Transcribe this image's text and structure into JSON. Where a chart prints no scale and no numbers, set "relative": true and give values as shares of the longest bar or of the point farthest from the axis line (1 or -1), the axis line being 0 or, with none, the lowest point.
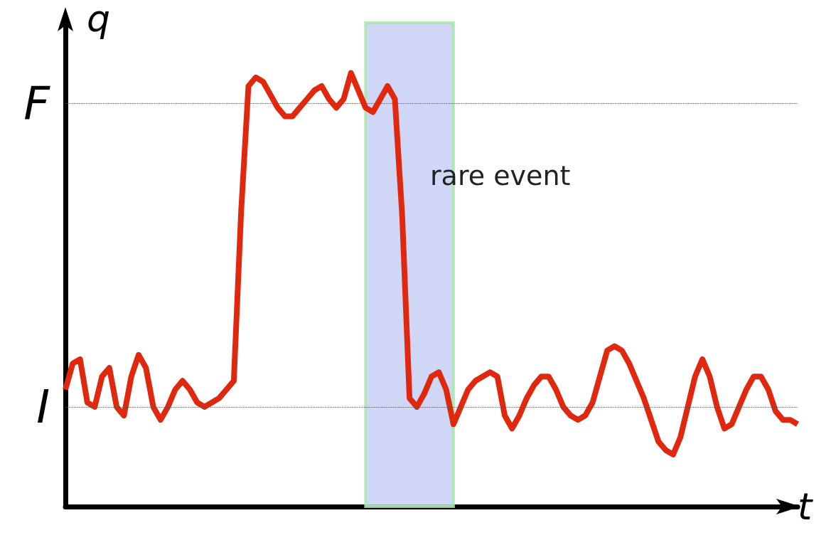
{
  "chart_data": {
    "type": "line",
    "xlabel": "t",
    "ylabel": "q",
    "relative": true,
    "categories": [
      null,
      null,
      null,
      null,
      null,
      null,
      null,
      null,
      null,
      null,
      null,
      null,
      null,
      null,
      null,
      null,
      null,
      null,
      null,
      null,
      null,
      null,
      null,
      null,
      null,
      null,
      null,
      null,
      null,
      null,
      null,
      null,
      null,
      null,
      null,
      null,
      null,
      null,
      null,
      null,
      null,
      null,
      null,
      null,
      null,
      null,
      null,
      null,
      null,
      null,
      null,
      null,
      null,
      null,
      null,
      null,
      null,
      null,
      null,
      null,
      null,
      null,
      null,
      null,
      null,
      null,
      null,
      null,
      null,
      null,
      null,
      null,
      null,
      null,
      null,
      null,
      null,
      null,
      null,
      null,
      null,
      null,
      null,
      null,
      null,
      null,
      null,
      null,
      null,
      null,
      null,
      null,
      null,
      null,
      null,
      null,
      null,
      null,
      null,
      null,
      null
    ],
    "grid": false,
    "marker": "none",
    "line_style": "solid",
    "series": [
      {
        "color": "#e0280e",
        "values": [
          0.27,
          0.33,
          0.34,
          0.24,
          0.23,
          0.3,
          0.32,
          0.23,
          0.21,
          0.3,
          0.35,
          0.32,
          0.23,
          0.2,
          0.23,
          0.27,
          0.29,
          0.27,
          0.24,
          0.23,
          0.24,
          0.25,
          0.27,
          0.29,
          0.68,
          0.97,
          0.99,
          0.98,
          0.95,
          0.92,
          0.9,
          0.9,
          0.92,
          0.94,
          0.96,
          0.97,
          0.94,
          0.92,
          0.94,
          1.0,
          0.96,
          0.92,
          0.91,
          0.94,
          0.97,
          0.94,
          0.67,
          0.25,
          0.23,
          0.26,
          0.3,
          0.31,
          0.27,
          0.19,
          0.23,
          0.27,
          0.29,
          0.3,
          0.31,
          0.3,
          0.21,
          0.18,
          0.21,
          0.25,
          0.28,
          0.3,
          0.3,
          0.27,
          0.23,
          0.21,
          0.2,
          0.21,
          0.24,
          0.3,
          0.36,
          0.37,
          0.36,
          0.33,
          0.29,
          0.25,
          0.2,
          0.15,
          0.13,
          0.12,
          0.16,
          0.23,
          0.3,
          0.34,
          0.3,
          0.23,
          0.18,
          0.19,
          0.23,
          0.27,
          0.3,
          0.3,
          0.27,
          0.22,
          0.2,
          0.2,
          0.19
        ]
      }
    ],
    "ref_lines": [
      {
        "axis": "y",
        "value": 0.23,
        "label": "I",
        "color": "#555555",
        "line_style": "dotted"
      },
      {
        "axis": "y",
        "value": 0.93,
        "label": "F",
        "color": "#555555",
        "line_style": "dotted"
      }
    ],
    "annotations": [
      "rare event"
    ]
  }
}
